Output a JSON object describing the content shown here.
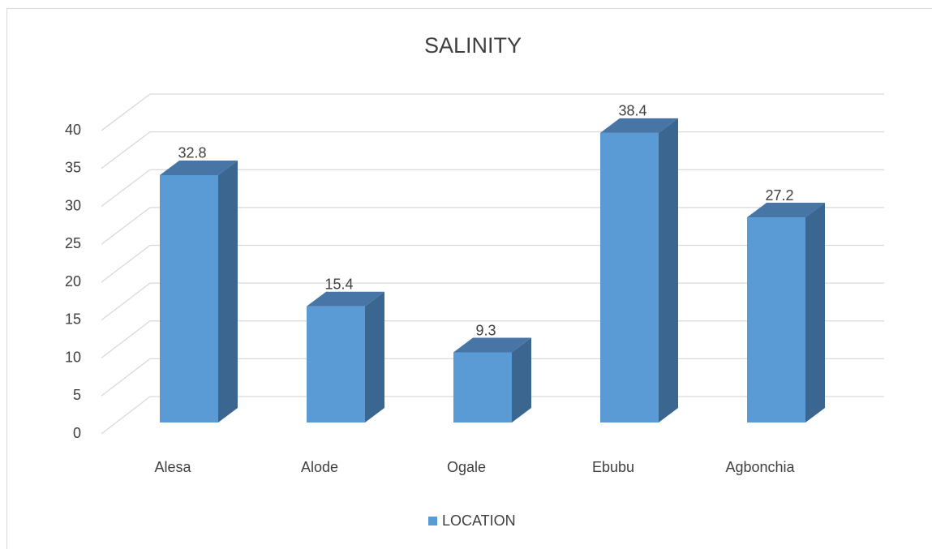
{
  "chart_data": {
    "type": "bar3d",
    "title": "SALINITY",
    "categories": [
      "Alesa",
      "Alode",
      "Ogale",
      "Ebubu",
      "Agbonchia"
    ],
    "series": [
      {
        "name": "LOCATION",
        "color": "#5b9bd5",
        "values": [
          32.8,
          15.4,
          9.3,
          38.4,
          27.2
        ]
      }
    ],
    "ylim": [
      0,
      40
    ],
    "yticks": [
      0,
      5,
      10,
      15,
      20,
      25,
      30,
      35,
      40
    ],
    "grid": true,
    "legend": "bottom"
  }
}
